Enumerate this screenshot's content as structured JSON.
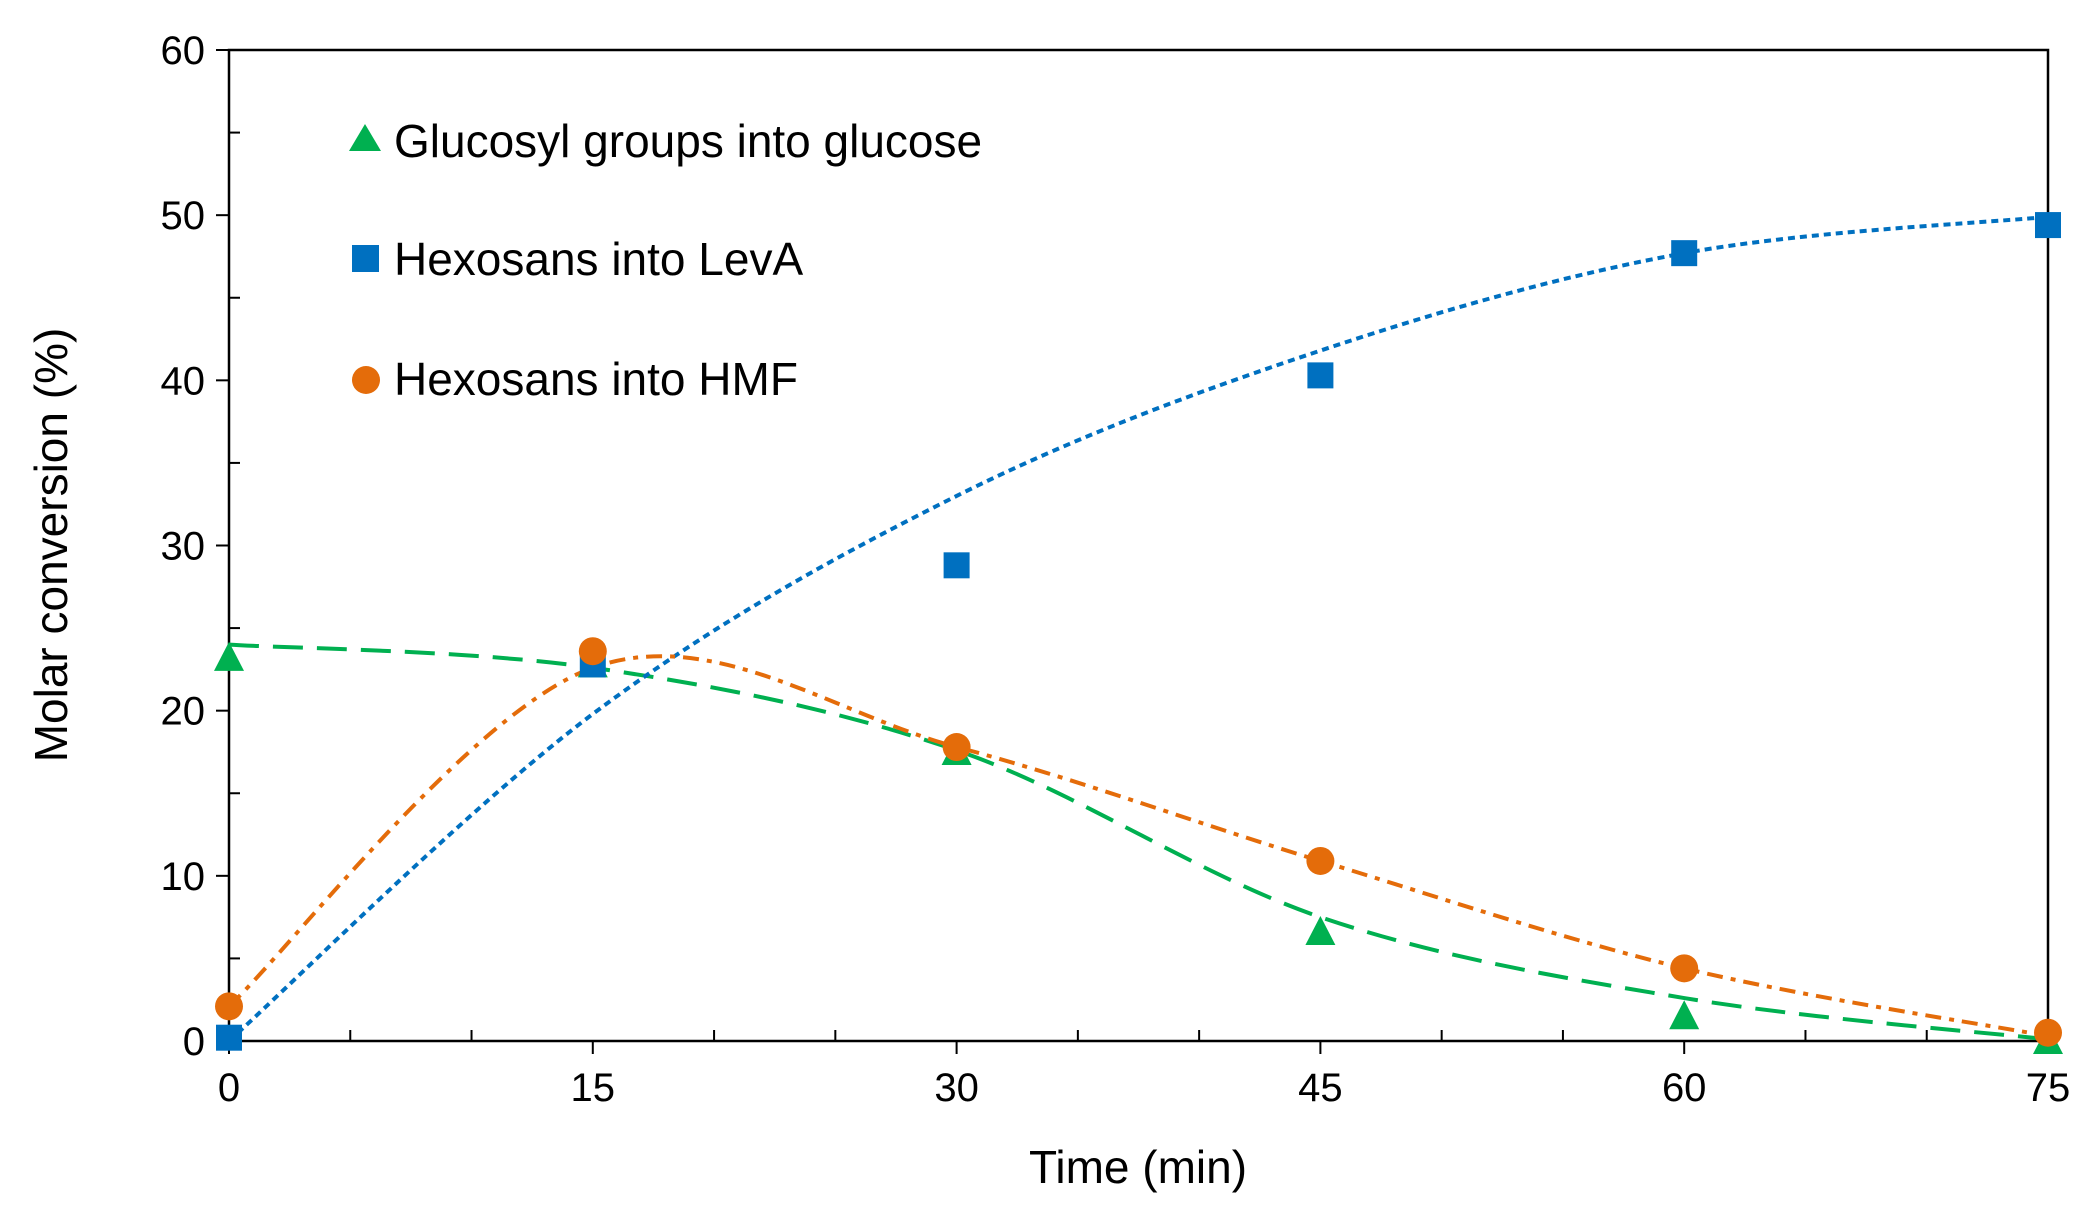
{
  "chart_data": {
    "type": "scatter",
    "xlabel": "Time (min)",
    "ylabel": "Molar conversion (%)",
    "xlim": [
      0,
      75
    ],
    "ylim": [
      0,
      60
    ],
    "x_ticks": [
      0,
      15,
      30,
      45,
      60,
      75
    ],
    "x_tick_labels": [
      "0",
      "15",
      "30",
      "45",
      "60",
      "75"
    ],
    "x_minor_step": 5,
    "y_ticks": [
      0,
      10,
      20,
      30,
      40,
      50,
      60
    ],
    "y_tick_labels": [
      "0",
      "10",
      "20",
      "30",
      "40",
      "50",
      "60"
    ],
    "y_minor_step": 5,
    "grid": false,
    "legend_position": "top-left",
    "series": [
      {
        "name": "Glucosyl groups into glucose",
        "marker": "triangle",
        "color": "#00B050",
        "line_style": "long-dash",
        "x": [
          0,
          15,
          30,
          45,
          60,
          75
        ],
        "y": [
          23.2,
          22.8,
          17.5,
          6.6,
          1.5,
          0.0
        ],
        "trend_x": [
          0,
          15,
          30,
          45,
          60,
          75
        ],
        "trend_y": [
          24.0,
          22.6,
          17.6,
          7.5,
          2.6,
          0.1
        ]
      },
      {
        "name": "Hexosans into LevA",
        "marker": "square",
        "color": "#0070C0",
        "line_style": "dotted",
        "x": [
          0,
          15,
          30,
          45,
          60,
          75
        ],
        "y": [
          0.2,
          22.8,
          28.8,
          40.3,
          47.7,
          49.4
        ],
        "trend_x": [
          0,
          15,
          30,
          45,
          60,
          75
        ],
        "trend_y": [
          0.0,
          19.8,
          33.0,
          41.8,
          47.7,
          49.9
        ]
      },
      {
        "name": "Hexosans into HMF",
        "marker": "circle",
        "color": "#E46C0A",
        "line_style": "dash-dot",
        "x": [
          0,
          15,
          30,
          45,
          60,
          75
        ],
        "y": [
          2.1,
          23.6,
          17.8,
          10.9,
          4.4,
          0.5
        ],
        "trend_x": [
          0,
          15,
          30,
          45,
          60,
          75
        ],
        "trend_y": [
          2.1,
          22.6,
          17.8,
          10.9,
          4.4,
          0.3
        ]
      }
    ]
  }
}
